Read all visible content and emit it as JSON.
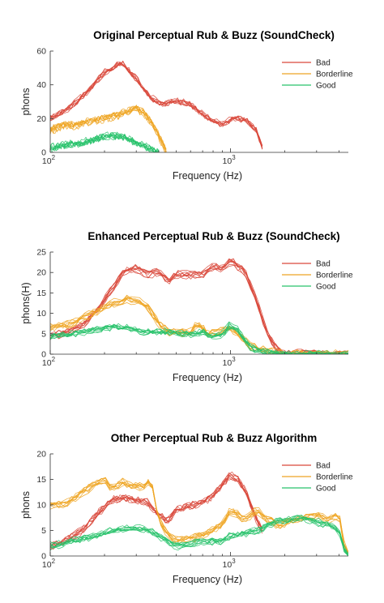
{
  "colors": {
    "bad": "#d9483b",
    "borderline": "#eea524",
    "good": "#27c26a"
  },
  "chart_data": [
    {
      "type": "line",
      "title": "Original Perceptual Rub & Buzz (SoundCheck)",
      "xlabel": "Frequency (Hz)",
      "ylabel": "phons",
      "xscale": "log",
      "xlim": [
        100,
        4500
      ],
      "ylim": [
        0,
        60
      ],
      "yticks": [
        "0",
        "20",
        "40",
        "60"
      ],
      "xticks": [
        {
          "base": "10",
          "exp": "2",
          "value": 100
        },
        {
          "base": "10",
          "exp": "3",
          "value": 1000
        }
      ],
      "legend_position": "top-right",
      "grid": false,
      "series": [
        {
          "name": "Bad",
          "color_key": "bad",
          "x": [
            100,
            125,
            160,
            200,
            250,
            300,
            360,
            420,
            500,
            600,
            700,
            800,
            900,
            1000,
            1100,
            1250,
            1400,
            1500
          ],
          "values": [
            20,
            25,
            35,
            47,
            53,
            43,
            32,
            28,
            30,
            28,
            22,
            18,
            16,
            19,
            20,
            18,
            12,
            2
          ]
        },
        {
          "name": "Borderline",
          "color_key": "borderline",
          "x": [
            100,
            120,
            140,
            160,
            180,
            200,
            240,
            300,
            340,
            380,
            420,
            440
          ],
          "values": [
            13,
            16,
            16,
            18,
            19,
            20,
            22,
            26,
            22,
            14,
            5,
            0
          ]
        },
        {
          "name": "Good",
          "color_key": "good",
          "x": [
            100,
            125,
            150,
            175,
            200,
            250,
            300,
            350,
            400
          ],
          "values": [
            3,
            5,
            6,
            8,
            10,
            10,
            6,
            3,
            0
          ]
        }
      ]
    },
    {
      "type": "line",
      "title": "Enhanced Perceptual Rub & Buzz (SoundCheck)",
      "xlabel": "Frequency (Hz)",
      "ylabel": "phons(H)",
      "xscale": "log",
      "xlim": [
        100,
        4500
      ],
      "ylim": [
        0,
        25
      ],
      "yticks": [
        "0",
        "5",
        "10",
        "15",
        "20",
        "25"
      ],
      "xticks": [
        {
          "base": "10",
          "exp": "2",
          "value": 100
        },
        {
          "base": "10",
          "exp": "3",
          "value": 1000
        }
      ],
      "legend_position": "top-right",
      "grid": false,
      "series": [
        {
          "name": "Bad",
          "color_key": "bad",
          "x": [
            100,
            120,
            150,
            180,
            220,
            260,
            300,
            350,
            400,
            450,
            500,
            600,
            700,
            800,
            900,
            1000,
            1100,
            1200,
            1400,
            1600,
            1800,
            2000,
            4500
          ],
          "values": [
            4.5,
            5.2,
            7,
            10.5,
            16,
            20.5,
            21,
            19.5,
            20.3,
            18,
            19.5,
            19.5,
            19.5,
            21.5,
            21,
            23,
            21.5,
            20.5,
            13,
            5,
            1.5,
            0.3,
            0
          ]
        },
        {
          "name": "Borderline",
          "color_key": "borderline",
          "x": [
            100,
            130,
            170,
            220,
            270,
            320,
            350,
            400,
            450,
            500,
            550,
            600,
            650,
            700,
            750,
            800,
            900,
            1000,
            1100,
            1300,
            1600,
            2000,
            4500
          ],
          "values": [
            6.5,
            7.5,
            10,
            12.5,
            13.5,
            12.8,
            11.5,
            7.5,
            5.5,
            5.5,
            5.2,
            5.5,
            7.5,
            6.5,
            4.8,
            5.3,
            5.8,
            6.5,
            5,
            2,
            0.8,
            0.2,
            0
          ]
        },
        {
          "name": "Good",
          "color_key": "good",
          "x": [
            100,
            130,
            170,
            220,
            270,
            320,
            400,
            500,
            600,
            700,
            800,
            900,
            1000,
            1100,
            1300,
            1600,
            2000,
            4500
          ],
          "values": [
            4.5,
            5,
            6,
            6.8,
            6.5,
            5.5,
            5.8,
            5.2,
            5,
            5.5,
            4.5,
            5,
            7.5,
            6,
            1.5,
            0.5,
            0.2,
            0
          ]
        }
      ]
    },
    {
      "type": "line",
      "title": "Other Perceptual Rub & Buzz Algorithm",
      "xlabel": "Frequency (Hz)",
      "ylabel": "phons",
      "xscale": "log",
      "xlim": [
        100,
        4500
      ],
      "ylim": [
        0,
        20
      ],
      "yticks": [
        "0",
        "5",
        "10",
        "15",
        "20"
      ],
      "xticks": [
        {
          "base": "10",
          "exp": "2",
          "value": 100
        },
        {
          "base": "10",
          "exp": "3",
          "value": 1000
        }
      ],
      "legend_position": "top-right",
      "grid": false,
      "series": [
        {
          "name": "Bad",
          "color_key": "bad",
          "x": [
            100,
            120,
            150,
            180,
            220,
            260,
            300,
            350,
            400,
            450,
            500,
            600,
            700,
            800,
            900,
            1000,
            1100,
            1200,
            1300,
            1400,
            1500
          ],
          "values": [
            2,
            3,
            5,
            8,
            11,
            11.5,
            11,
            10.5,
            8,
            7,
            9,
            10,
            10.5,
            12,
            14,
            16,
            15,
            13,
            10,
            7,
            5
          ]
        },
        {
          "name": "Borderline",
          "color_key": "borderline",
          "x": [
            100,
            120,
            150,
            180,
            200,
            220,
            250,
            280,
            300,
            330,
            360,
            400,
            450,
            500,
            600,
            700,
            800,
            900,
            1000,
            1100,
            1200,
            1400,
            1600,
            1900,
            2200,
            2600,
            3000,
            3500,
            4000,
            4200,
            4500
          ],
          "values": [
            10,
            10,
            12.5,
            14,
            15,
            13,
            14.5,
            13.5,
            14,
            13.5,
            15,
            7,
            4,
            3,
            3.5,
            4,
            5,
            6,
            9,
            8,
            7,
            9,
            7,
            6,
            7,
            7.5,
            8,
            7,
            8,
            3,
            0
          ]
        },
        {
          "name": "Good",
          "color_key": "good",
          "x": [
            100,
            120,
            150,
            180,
            220,
            260,
            300,
            350,
            400,
            450,
            500,
            600,
            700,
            800,
            900,
            1000,
            1200,
            1400,
            1600,
            1800,
            2000,
            2400,
            2800,
            3200,
            3600,
            4000,
            4200,
            4500
          ],
          "values": [
            2,
            2.5,
            3.5,
            4,
            5,
            5.5,
            5.5,
            5,
            4,
            3,
            2,
            2.5,
            3,
            3,
            3,
            4,
            4.5,
            5,
            6,
            7,
            7,
            7.5,
            7,
            6.5,
            6,
            5,
            2,
            0
          ]
        }
      ]
    }
  ]
}
